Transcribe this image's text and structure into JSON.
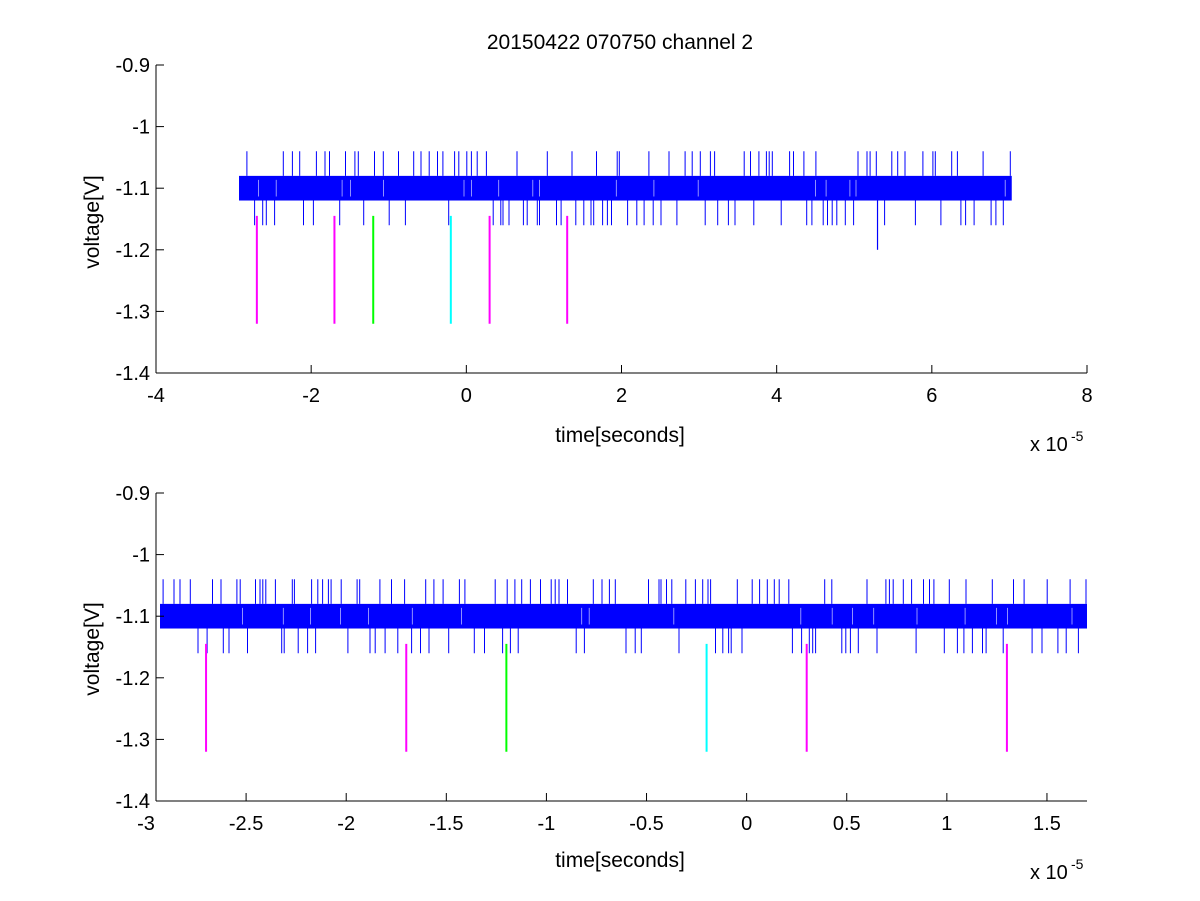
{
  "figure": {
    "background": "#ffffff",
    "trace_color": "#0000ff"
  },
  "chart_data": [
    {
      "type": "line",
      "title": "20150422 070750 channel 2",
      "xlabel": "time[seconds]",
      "ylabel": "voltage[V]",
      "x_multiplier_label": "x 10",
      "x_multiplier_exponent": "-5",
      "xlim": [
        -4,
        8
      ],
      "ylim": [
        -1.4,
        -0.9
      ],
      "x_ticks": [
        -4,
        -2,
        0,
        2,
        4,
        6,
        8
      ],
      "x_tick_labels": [
        "-4",
        "-2",
        "0",
        "2",
        "4",
        "6",
        "8"
      ],
      "y_ticks": [
        -0.9,
        -1,
        -1.1,
        -1.2,
        -1.3,
        -1.4
      ],
      "y_tick_labels": [
        "-0.9",
        "-1",
        "-1.1",
        "-1.2",
        "-1.3",
        "-1.4"
      ],
      "grid": false,
      "series": [
        {
          "color": "#0000ff",
          "x_range": [
            -2.93,
            7.03
          ],
          "y_band": [
            -1.12,
            -1.08
          ],
          "y_spike_range": [
            -1.16,
            -1.04
          ],
          "outlier": {
            "x": 5.3,
            "y": -1.2
          }
        }
      ],
      "markers": [
        {
          "x": -2.7,
          "y_top": -1.145,
          "y_bottom": -1.32,
          "color": "#ff00ff"
        },
        {
          "x": -1.7,
          "y_top": -1.145,
          "y_bottom": -1.32,
          "color": "#ff00ff"
        },
        {
          "x": -1.2,
          "y_top": -1.145,
          "y_bottom": -1.32,
          "color": "#00ff00"
        },
        {
          "x": -0.2,
          "y_top": -1.145,
          "y_bottom": -1.32,
          "color": "#00ffff"
        },
        {
          "x": 0.3,
          "y_top": -1.145,
          "y_bottom": -1.32,
          "color": "#ff00ff"
        },
        {
          "x": 1.3,
          "y_top": -1.145,
          "y_bottom": -1.32,
          "color": "#ff00ff"
        }
      ]
    },
    {
      "type": "line",
      "title": "",
      "xlabel": "time[seconds]",
      "ylabel": "voltage[V]",
      "x_multiplier_label": "x 10",
      "x_multiplier_exponent": "-5",
      "xlim": [
        -2.95,
        1.7
      ],
      "ylim": [
        -1.4,
        -0.9
      ],
      "x_ticks": [
        -3,
        -2.5,
        -2,
        -1.5,
        -1,
        -0.5,
        0,
        0.5,
        1,
        1.5
      ],
      "x_tick_labels": [
        "-3",
        "-2.5",
        "-2",
        "-1.5",
        "-1",
        "-0.5",
        "0",
        "0.5",
        "1",
        "1.5"
      ],
      "y_ticks": [
        -0.9,
        -1,
        -1.1,
        -1.2,
        -1.3,
        -1.4
      ],
      "y_tick_labels": [
        "-0.9",
        "-1",
        "-1.1",
        "-1.2",
        "-1.3",
        "-1.4"
      ],
      "grid": false,
      "series": [
        {
          "color": "#0000ff",
          "x_range": [
            -2.93,
            1.7
          ],
          "y_band": [
            -1.12,
            -1.08
          ],
          "y_spike_range": [
            -1.16,
            -1.04
          ]
        }
      ],
      "markers": [
        {
          "x": -2.7,
          "y_top": -1.145,
          "y_bottom": -1.32,
          "color": "#ff00ff"
        },
        {
          "x": -1.7,
          "y_top": -1.145,
          "y_bottom": -1.32,
          "color": "#ff00ff"
        },
        {
          "x": -1.2,
          "y_top": -1.145,
          "y_bottom": -1.32,
          "color": "#00ff00"
        },
        {
          "x": -0.2,
          "y_top": -1.145,
          "y_bottom": -1.32,
          "color": "#00ffff"
        },
        {
          "x": 0.3,
          "y_top": -1.145,
          "y_bottom": -1.32,
          "color": "#ff00ff"
        },
        {
          "x": 1.3,
          "y_top": -1.145,
          "y_bottom": -1.32,
          "color": "#ff00ff"
        }
      ]
    }
  ]
}
